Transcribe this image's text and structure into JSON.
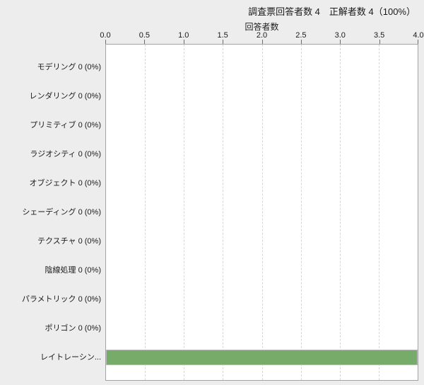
{
  "chart_data": {
    "type": "bar",
    "orientation": "horizontal",
    "title": "調査票回答者数 4　正解者数 4（100%）",
    "xlabel": "回答者数",
    "ylabel": "",
    "xlim": [
      0.0,
      4.0
    ],
    "xtick_labels": [
      "0.0",
      "0.5",
      "1.0",
      "1.5",
      "2.0",
      "2.5",
      "3.0",
      "3.5",
      "4.0"
    ],
    "grid": "vertical-dashed",
    "legend_position": "none",
    "categories": [
      "モデリング 0 (0%)",
      "レンダリング 0 (0%)",
      "プリミティブ 0 (0%)",
      "ラジオシティ 0 (0%)",
      "オブジェクト 0 (0%)",
      "シェーディング 0 (0%)",
      "テクスチャ 0 (0%)",
      "陰線処理 0 (0%)",
      "パラメトリック 0 (0%)",
      "ポリゴン 0 (0%)",
      "レイトレーシン..."
    ],
    "values": [
      0,
      0,
      0,
      0,
      0,
      0,
      0,
      0,
      0,
      0,
      4
    ],
    "colors": {
      "page_background": "#ededed",
      "plot_background": "#ffffff",
      "plot_border": "#a3a3a3",
      "gridline": "#d6d6d6",
      "bar_fill": "#76ab6a",
      "bar_border": "#bdbdbd",
      "text": "#1a1a1a"
    }
  }
}
